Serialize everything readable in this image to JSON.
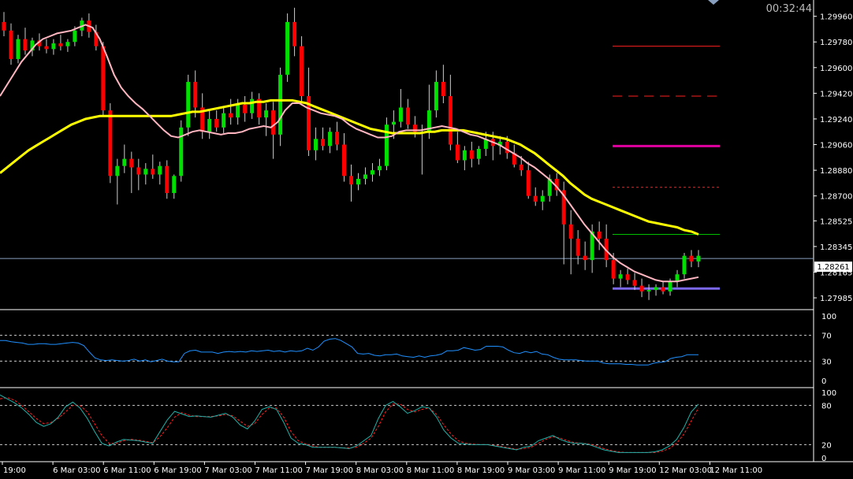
{
  "timer": "00:32:44",
  "colors": {
    "background": "#000000",
    "grid": "#ffffff",
    "bull": "#00e000",
    "bear": "#ff0000",
    "wick": "#cccccc",
    "ma_fast": "#ffb6c1",
    "ma_slow": "#ffff00",
    "level_solid_red": "#ff2020",
    "level_dash_red": "#ff2020",
    "level_magenta": "#e000a0",
    "level_dot_red": "#ff2020",
    "level_green": "#00c000",
    "level_blue": "#7b68ee",
    "rsi": "#1e90ff",
    "stoch_main": "#20b2aa",
    "stoch_signal": "#ff2020",
    "price_line": "#8aa0c0"
  },
  "price_axis": {
    "labels": [
      "1.29960",
      "1.29780",
      "1.29600",
      "1.29420",
      "1.29240",
      "1.29060",
      "1.28880",
      "1.28700",
      "1.28525",
      "1.28345",
      "1.28165",
      "1.27985"
    ],
    "current": "1.28261"
  },
  "time_axis": {
    "labels": [
      "19:00",
      "6 Mar 03:00",
      "6 Mar 11:00",
      "6 Mar 19:00",
      "7 Mar 03:00",
      "7 Mar 11:00",
      "7 Mar 19:00",
      "8 Mar 03:00",
      "8 Mar 11:00",
      "8 Mar 19:00",
      "9 Mar 03:00",
      "9 Mar 11:00",
      "9 Mar 19:00",
      "12 Mar 03:00",
      "12 Mar 11:00"
    ]
  },
  "rsi_axis": {
    "labels": [
      "100",
      "70",
      "30",
      "0"
    ]
  },
  "stoch_axis": {
    "labels": [
      "100",
      "80",
      "20",
      "0"
    ]
  },
  "chart_data": {
    "type": "candlestick",
    "ylim": [
      1.2793,
      1.3003
    ],
    "candles": [
      [
        1.2992,
        1.2999,
        1.2982,
        1.2986
      ],
      [
        1.2986,
        1.2991,
        1.2962,
        1.2966
      ],
      [
        1.2966,
        1.2983,
        1.2963,
        1.298
      ],
      [
        1.298,
        1.2988,
        1.2969,
        1.2972
      ],
      [
        1.2972,
        1.2981,
        1.2968,
        1.2979
      ],
      [
        1.2979,
        1.2984,
        1.2972,
        1.2975
      ],
      [
        1.2975,
        1.298,
        1.297,
        1.2973
      ],
      [
        1.2973,
        1.298,
        1.2969,
        1.2977
      ],
      [
        1.2977,
        1.2983,
        1.2972,
        1.2975
      ],
      [
        1.2975,
        1.298,
        1.2971,
        1.2978
      ],
      [
        1.2978,
        1.2989,
        1.2975,
        1.2986
      ],
      [
        1.2986,
        1.2995,
        1.2982,
        1.2993
      ],
      [
        1.2993,
        1.2998,
        1.2981,
        1.2985
      ],
      [
        1.2985,
        1.299,
        1.2972,
        1.2975
      ],
      [
        1.2975,
        1.2978,
        1.2926,
        1.293
      ],
      [
        1.293,
        1.2935,
        1.2879,
        1.2884
      ],
      [
        1.2884,
        1.2896,
        1.2864,
        1.2891
      ],
      [
        1.2891,
        1.2906,
        1.2886,
        1.2896
      ],
      [
        1.2896,
        1.2901,
        1.2872,
        1.289
      ],
      [
        1.289,
        1.2896,
        1.2874,
        1.2885
      ],
      [
        1.2885,
        1.2893,
        1.2878,
        1.2889
      ],
      [
        1.2889,
        1.2899,
        1.2882,
        1.2885
      ],
      [
        1.2885,
        1.2894,
        1.2878,
        1.2891
      ],
      [
        1.2891,
        1.2895,
        1.2868,
        1.2872
      ],
      [
        1.2872,
        1.2885,
        1.2868,
        1.2884
      ],
      [
        1.2884,
        1.2923,
        1.288,
        1.2918
      ],
      [
        1.2918,
        1.2955,
        1.2912,
        1.295
      ],
      [
        1.295,
        1.2958,
        1.2925,
        1.2932
      ],
      [
        1.2932,
        1.2942,
        1.291,
        1.2915
      ],
      [
        1.2915,
        1.293,
        1.291,
        1.2924
      ],
      [
        1.2924,
        1.293,
        1.2915,
        1.2918
      ],
      [
        1.2918,
        1.2932,
        1.2914,
        1.2928
      ],
      [
        1.2928,
        1.2938,
        1.292,
        1.2925
      ],
      [
        1.2925,
        1.2938,
        1.292,
        1.2934
      ],
      [
        1.2934,
        1.294,
        1.2922,
        1.2928
      ],
      [
        1.2928,
        1.2943,
        1.2924,
        1.2938
      ],
      [
        1.2938,
        1.2942,
        1.292,
        1.2925
      ],
      [
        1.2925,
        1.2935,
        1.2912,
        1.293
      ],
      [
        1.293,
        1.2936,
        1.2896,
        1.2913
      ],
      [
        1.2913,
        1.296,
        1.2905,
        1.2955
      ],
      [
        1.2955,
        1.2998,
        1.295,
        1.2992
      ],
      [
        1.2992,
        1.3002,
        1.2968,
        1.2975
      ],
      [
        1.2975,
        1.2982,
        1.2935,
        1.294
      ],
      [
        1.294,
        1.296,
        1.2898,
        1.2902
      ],
      [
        1.2902,
        1.2918,
        1.2895,
        1.291
      ],
      [
        1.291,
        1.2918,
        1.2902,
        1.2905
      ],
      [
        1.2905,
        1.2918,
        1.29,
        1.2915
      ],
      [
        1.2915,
        1.2922,
        1.2902,
        1.2906
      ],
      [
        1.2906,
        1.2914,
        1.288,
        1.2884
      ],
      [
        1.2884,
        1.2892,
        1.2866,
        1.2878
      ],
      [
        1.2878,
        1.2886,
        1.2874,
        1.2882
      ],
      [
        1.2882,
        1.289,
        1.2878,
        1.2885
      ],
      [
        1.2885,
        1.2893,
        1.288,
        1.2888
      ],
      [
        1.2888,
        1.2896,
        1.2884,
        1.2891
      ],
      [
        1.2891,
        1.2925,
        1.2888,
        1.292
      ],
      [
        1.292,
        1.293,
        1.291,
        1.2922
      ],
      [
        1.2922,
        1.2945,
        1.2918,
        1.2932
      ],
      [
        1.2932,
        1.2938,
        1.2917,
        1.292
      ],
      [
        1.292,
        1.2926,
        1.2911,
        1.2915
      ],
      [
        1.2915,
        1.292,
        1.2885,
        1.2915
      ],
      [
        1.2915,
        1.2948,
        1.291,
        1.293
      ],
      [
        1.293,
        1.2958,
        1.2925,
        1.295
      ],
      [
        1.295,
        1.2962,
        1.2935,
        1.294
      ],
      [
        1.294,
        1.2955,
        1.2902,
        1.2906
      ],
      [
        1.2906,
        1.2915,
        1.2893,
        1.2895
      ],
      [
        1.2895,
        1.2905,
        1.2888,
        1.2902
      ],
      [
        1.2902,
        1.2908,
        1.289,
        1.2896
      ],
      [
        1.2896,
        1.2905,
        1.2892,
        1.2903
      ],
      [
        1.2903,
        1.2915,
        1.2898,
        1.291
      ],
      [
        1.291,
        1.2915,
        1.2895,
        1.2905
      ],
      [
        1.2905,
        1.2912,
        1.2899,
        1.2908
      ],
      [
        1.2908,
        1.2912,
        1.2896,
        1.29
      ],
      [
        1.29,
        1.2906,
        1.289,
        1.2892
      ],
      [
        1.2892,
        1.2898,
        1.2884,
        1.2888
      ],
      [
        1.2888,
        1.2894,
        1.2868,
        1.287
      ],
      [
        1.287,
        1.2876,
        1.2863,
        1.2866
      ],
      [
        1.2866,
        1.2874,
        1.286,
        1.287
      ],
      [
        1.287,
        1.2885,
        1.2866,
        1.2882
      ],
      [
        1.2882,
        1.2886,
        1.287,
        1.2874
      ],
      [
        1.2874,
        1.288,
        1.2822,
        1.285
      ],
      [
        1.285,
        1.286,
        1.2815,
        1.284
      ],
      [
        1.284,
        1.2846,
        1.2822,
        1.2828
      ],
      [
        1.2828,
        1.2838,
        1.2818,
        1.2825
      ],
      [
        1.2825,
        1.285,
        1.2816,
        1.2845
      ],
      [
        1.2845,
        1.2852,
        1.2832,
        1.284
      ],
      [
        1.284,
        1.285,
        1.282,
        1.2825
      ],
      [
        1.2825,
        1.283,
        1.2808,
        1.2812
      ],
      [
        1.2812,
        1.2818,
        1.2806,
        1.2815
      ],
      [
        1.2815,
        1.2819,
        1.2808,
        1.2811
      ],
      [
        1.2811,
        1.2816,
        1.2804,
        1.2807
      ],
      [
        1.2807,
        1.2812,
        1.2799,
        1.2803
      ],
      [
        1.2803,
        1.2808,
        1.2797,
        1.2804
      ],
      [
        1.2804,
        1.2808,
        1.28,
        1.2806
      ],
      [
        1.2806,
        1.281,
        1.2801,
        1.2803
      ],
      [
        1.2803,
        1.2812,
        1.28,
        1.281
      ],
      [
        1.281,
        1.2818,
        1.2806,
        1.2815
      ],
      [
        1.2815,
        1.283,
        1.2812,
        1.2828
      ],
      [
        1.2828,
        1.2832,
        1.282,
        1.2824
      ],
      [
        1.2824,
        1.2832,
        1.282,
        1.2828
      ]
    ],
    "ma_fast": [
      1.294,
      1.2948,
      1.2956,
      1.2964,
      1.297,
      1.2976,
      1.298,
      1.2982,
      1.2984,
      1.2985,
      1.2986,
      1.2988,
      1.299,
      1.2988,
      1.298,
      1.2968,
      1.2955,
      1.2946,
      1.294,
      1.2935,
      1.2931,
      1.2926,
      1.2921,
      1.2916,
      1.2912,
      1.2911,
      1.2913,
      1.2915,
      1.2916,
      1.2915,
      1.2914,
      1.2913,
      1.2914,
      1.2914,
      1.2915,
      1.2917,
      1.2918,
      1.2919,
      1.2918,
      1.2922,
      1.293,
      1.2935,
      1.2935,
      1.2932,
      1.293,
      1.2928,
      1.2927,
      1.2926,
      1.2924,
      1.292,
      1.2917,
      1.2915,
      1.2913,
      1.2911,
      1.2911,
      1.2912,
      1.2915,
      1.2916,
      1.2916,
      1.2916,
      1.2917,
      1.2918,
      1.2919,
      1.2918,
      1.2917,
      1.2915,
      1.2913,
      1.2912,
      1.291,
      1.2908,
      1.2906,
      1.2903,
      1.29,
      1.2897,
      1.2893,
      1.289,
      1.2886,
      1.2882,
      1.2877,
      1.2871,
      1.2864,
      1.2857,
      1.285,
      1.2844,
      1.2838,
      1.2832,
      1.2827,
      1.2823,
      1.282,
      1.2817,
      1.2815,
      1.2813,
      1.2811,
      1.281,
      1.281,
      1.281,
      1.2811,
      1.2812,
      1.2813
    ],
    "ma_slow": [
      1.2886,
      1.289,
      1.2894,
      1.2898,
      1.2902,
      1.2905,
      1.2908,
      1.2911,
      1.2914,
      1.2917,
      1.292,
      1.2922,
      1.2924,
      1.2925,
      1.2926,
      1.2926,
      1.2926,
      1.2926,
      1.2926,
      1.2926,
      1.2926,
      1.2926,
      1.2926,
      1.2926,
      1.2926,
      1.2927,
      1.2928,
      1.2929,
      1.2929,
      1.293,
      1.2931,
      1.2932,
      1.2933,
      1.2934,
      1.2935,
      1.2935,
      1.2936,
      1.2936,
      1.2937,
      1.2937,
      1.2937,
      1.2937,
      1.2936,
      1.2935,
      1.2933,
      1.2931,
      1.2929,
      1.2927,
      1.2925,
      1.2923,
      1.2921,
      1.2919,
      1.2917,
      1.2916,
      1.2915,
      1.2914,
      1.2914,
      1.2914,
      1.2914,
      1.2914,
      1.2915,
      1.2915,
      1.2916,
      1.2916,
      1.2916,
      1.2916,
      1.2915,
      1.2914,
      1.2913,
      1.2912,
      1.2911,
      1.291,
      1.2908,
      1.2906,
      1.2903,
      1.29,
      1.2896,
      1.2892,
      1.2888,
      1.2884,
      1.2879,
      1.2875,
      1.2871,
      1.2868,
      1.2866,
      1.2864,
      1.2862,
      1.286,
      1.2858,
      1.2856,
      1.2854,
      1.2852,
      1.2851,
      1.285,
      1.2849,
      1.2848,
      1.2846,
      1.2845,
      1.2843
    ],
    "levels": [
      {
        "price": 1.2975,
        "style": "solid",
        "color_key": "level_solid_red",
        "width": 1
      },
      {
        "price": 1.294,
        "style": "dash",
        "color_key": "level_dash_red",
        "width": 1
      },
      {
        "price": 1.2905,
        "style": "solid",
        "color_key": "level_magenta",
        "width": 3
      },
      {
        "price": 1.2876,
        "style": "dot",
        "color_key": "level_dot_red",
        "width": 1
      },
      {
        "price": 1.2843,
        "style": "solid",
        "color_key": "level_green",
        "width": 1
      },
      {
        "price": 1.2805,
        "style": "solid",
        "color_key": "level_blue",
        "width": 3
      }
    ],
    "current_price": 1.28261,
    "rsi": [
      62,
      62,
      60,
      59,
      58,
      56,
      56,
      57,
      57,
      56,
      56,
      57,
      58,
      59,
      58,
      54,
      44,
      35,
      32,
      31,
      32,
      31,
      30,
      31,
      33,
      30,
      32,
      29,
      31,
      33,
      30,
      29,
      29,
      42,
      46,
      47,
      44,
      44,
      44,
      42,
      44,
      45,
      44,
      45,
      44,
      46,
      45,
      46,
      47,
      45,
      46,
      44,
      46,
      45,
      46,
      50,
      47,
      52,
      61,
      64,
      65,
      62,
      57,
      52,
      42,
      41,
      42,
      39,
      38,
      40,
      40,
      41,
      38,
      37,
      36,
      38,
      36,
      38,
      39,
      41,
      46,
      46,
      47,
      51,
      49,
      47,
      48,
      53,
      53,
      53,
      52,
      47,
      43,
      42,
      45,
      43,
      45,
      41,
      40,
      36,
      33,
      32,
      32,
      32,
      31,
      30,
      30,
      30,
      27,
      26,
      26,
      26,
      25,
      25,
      24,
      24,
      24,
      27,
      28,
      29,
      34,
      36,
      37,
      40,
      40,
      40
    ],
    "stoch_main": [
      96,
      90,
      84,
      76,
      66,
      54,
      48,
      52,
      62,
      78,
      85,
      76,
      60,
      40,
      22,
      18,
      24,
      28,
      27,
      26,
      24,
      22,
      40,
      58,
      71,
      67,
      63,
      64,
      63,
      62,
      65,
      68,
      62,
      50,
      44,
      56,
      74,
      78,
      74,
      54,
      30,
      22,
      20,
      16,
      16,
      16,
      16,
      15,
      14,
      18,
      26,
      34,
      60,
      80,
      86,
      78,
      68,
      72,
      78,
      76,
      62,
      42,
      30,
      22,
      21,
      20,
      20,
      20,
      18,
      16,
      14,
      12,
      16,
      18,
      26,
      30,
      34,
      28,
      24,
      22,
      22,
      20,
      16,
      12,
      10,
      8,
      8,
      8,
      8,
      8,
      9,
      12,
      18,
      28,
      46,
      70,
      82
    ],
    "stoch_signal": [
      90,
      92,
      88,
      80,
      70,
      60,
      52,
      54,
      60,
      70,
      80,
      80,
      70,
      52,
      34,
      22,
      22,
      26,
      28,
      27,
      25,
      23,
      32,
      46,
      62,
      69,
      65,
      63,
      63,
      63,
      64,
      66,
      64,
      56,
      48,
      52,
      66,
      76,
      76,
      62,
      40,
      26,
      21,
      18,
      16,
      16,
      16,
      15,
      15,
      16,
      22,
      30,
      48,
      70,
      82,
      82,
      74,
      70,
      74,
      76,
      66,
      50,
      36,
      26,
      22,
      21,
      20,
      20,
      19,
      17,
      15,
      13,
      14,
      16,
      22,
      28,
      32,
      30,
      26,
      23,
      22,
      21,
      18,
      14,
      11,
      9,
      8,
      8,
      8,
      8,
      8,
      10,
      14,
      22,
      36,
      56,
      76
    ]
  }
}
